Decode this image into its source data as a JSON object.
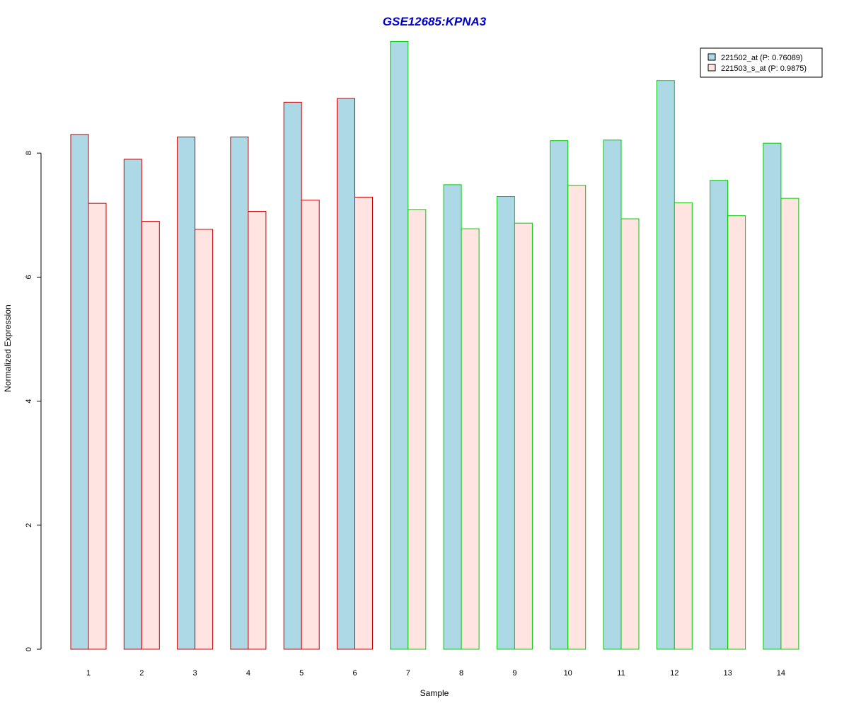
{
  "chart_data": {
    "type": "bar",
    "title": "GSE12685:KPNA3",
    "title_color": "#0000CC",
    "xlabel": "Sample",
    "ylabel": "Normalized Expression",
    "ylim": [
      0,
      9.8
    ],
    "yticks": [
      0,
      2,
      4,
      6,
      8
    ],
    "categories": [
      "1",
      "2",
      "3",
      "4",
      "5",
      "6",
      "7",
      "8",
      "9",
      "10",
      "11",
      "12",
      "13",
      "14"
    ],
    "group_border_colors": [
      "#CC0000",
      "#CC0000",
      "#CC0000",
      "#CC0000",
      "#CC0000",
      "#CC0000",
      "#00CC00",
      "#00CC00",
      "#00CC00",
      "#00CC00",
      "#00CC00",
      "#00CC00",
      "#00CC00",
      "#00CC00"
    ],
    "series": [
      {
        "name": "221502_at (P: 0.76089)",
        "fill": "#ADD8E6",
        "values": [
          8.3,
          7.9,
          8.26,
          8.26,
          8.82,
          8.88,
          9.8,
          7.49,
          7.3,
          8.2,
          8.21,
          9.17,
          7.56,
          8.16
        ]
      },
      {
        "name": "221503_s_at (P: 0.9875)",
        "fill": "#FFE4E1",
        "values": [
          7.19,
          6.9,
          6.77,
          7.06,
          7.24,
          7.29,
          7.09,
          6.78,
          6.87,
          7.48,
          6.94,
          7.2,
          6.99,
          7.27
        ]
      }
    ],
    "legend_position": "top-right",
    "grid": false
  }
}
